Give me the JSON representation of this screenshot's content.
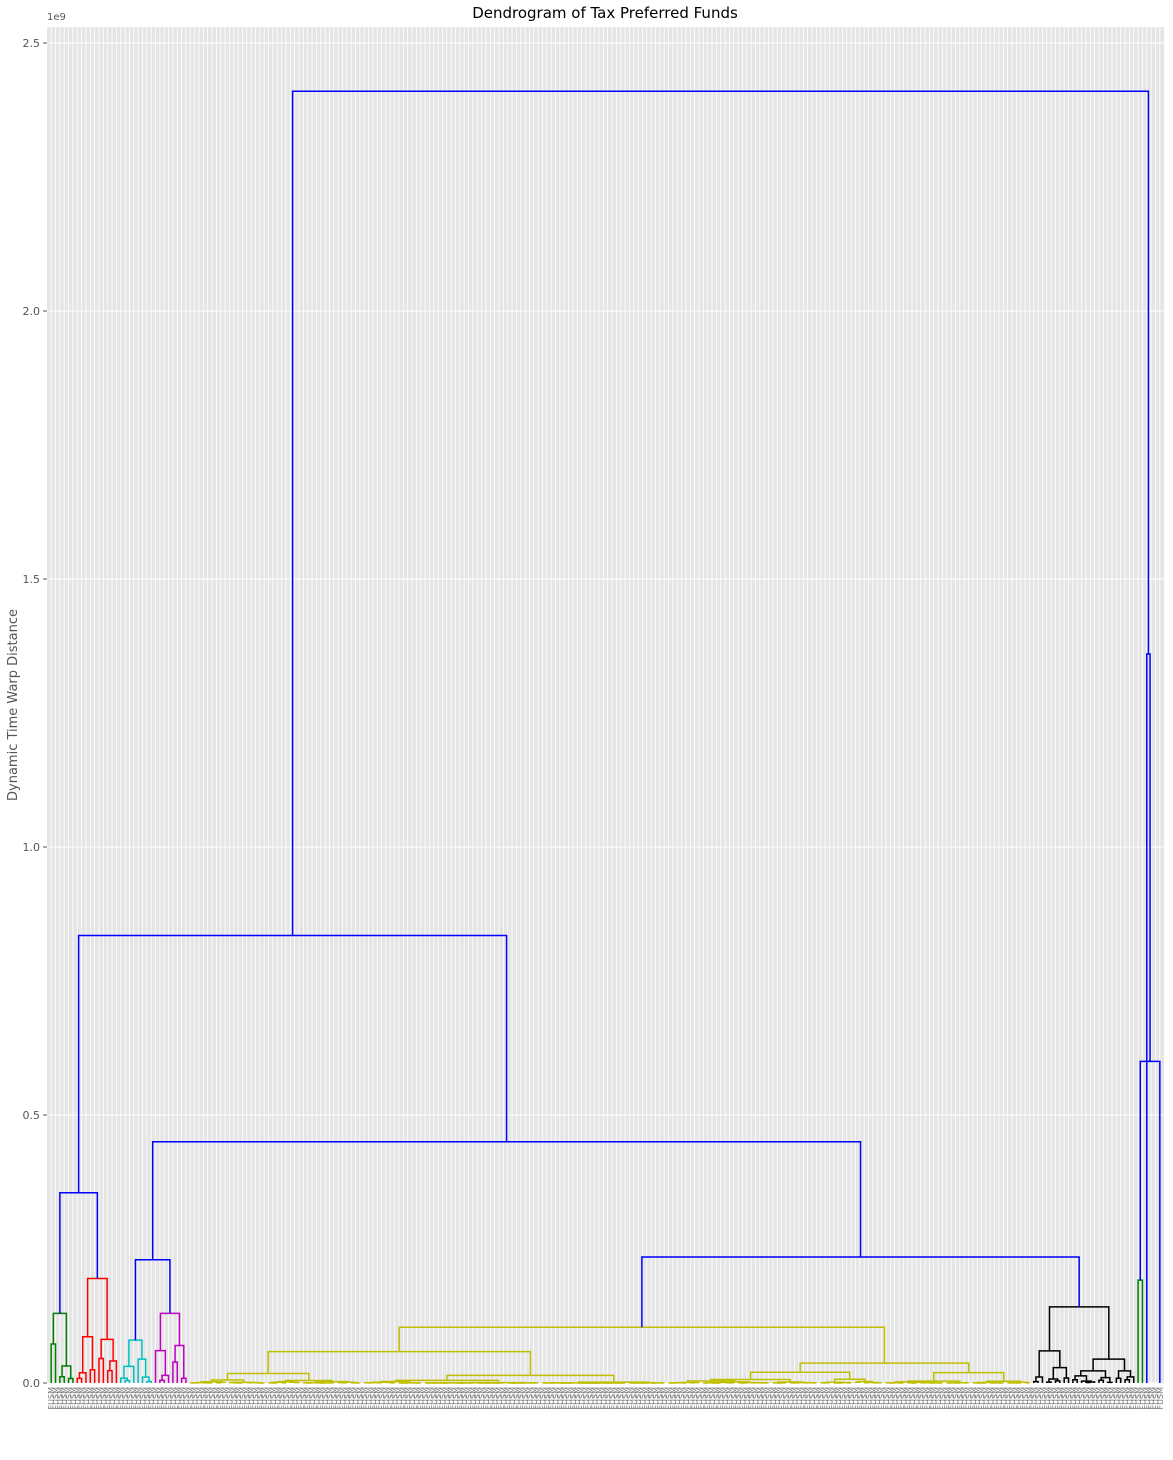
{
  "chart_data": {
    "type": "dendrogram",
    "title": "Dendrogram of Tax Preferred Funds",
    "xlabel": "",
    "ylabel": "Dynamic Time Warp Distance",
    "y_offset_text": "1e9",
    "ylim": [
      0,
      2.53
    ],
    "y_ticks": [
      0.0,
      0.5,
      1.0,
      1.5,
      2.0,
      2.5
    ],
    "y_tick_labels": [
      "0.0",
      "0.5",
      "1.0",
      "1.5",
      "2.0",
      "2.5"
    ],
    "grid": true,
    "leaf_count": 256,
    "leaf_label_prefix": "FUSM",
    "colors": {
      "link_above_threshold": "#0000ff",
      "cluster_green": "#008000",
      "cluster_red": "#ff0000",
      "cluster_cyan": "#00bfbf",
      "cluster_magenta": "#bf00bf",
      "cluster_yellow": "#bfbf00",
      "cluster_black": "#000000",
      "background": "#e5e5e5",
      "grid": "#ffffff"
    },
    "top_merges": [
      {
        "height": 2.41,
        "color": "blue",
        "children": [
          "left-super",
          "right-outliers"
        ]
      },
      {
        "height": 1.36,
        "color": "blue",
        "children": [
          "right-outliers-a",
          "right-outliers-b"
        ]
      },
      {
        "height": 0.6,
        "color": "blue",
        "children": [
          "outlier-green",
          "outlier-single"
        ]
      },
      {
        "height": 0.835,
        "color": "blue",
        "children": [
          "small-clusters",
          "big-group"
        ]
      },
      {
        "height": 0.45,
        "color": "blue",
        "children": [
          "cyan-magenta",
          "yellow-black"
        ]
      },
      {
        "height": 0.355,
        "color": "blue",
        "children": [
          "green",
          "red"
        ]
      },
      {
        "height": 0.235,
        "color": "blue",
        "children": [
          "yellow",
          "black"
        ]
      },
      {
        "height": 0.23,
        "color": "blue",
        "children": [
          "cyan",
          "magenta"
        ]
      }
    ],
    "clusters": [
      {
        "name": "green",
        "color": "green",
        "leaves": 6,
        "max_height": 0.13
      },
      {
        "name": "red",
        "color": "red",
        "leaves": 10,
        "max_height": 0.195
      },
      {
        "name": "cyan",
        "color": "cyan",
        "leaves": 8,
        "max_height": 0.08
      },
      {
        "name": "magenta",
        "color": "magenta",
        "leaves": 8,
        "max_height": 0.13
      },
      {
        "name": "yellow",
        "color": "yellow",
        "leaves": 194,
        "max_height": 0.104
      },
      {
        "name": "black",
        "color": "black",
        "leaves": 24,
        "max_height": 0.142
      },
      {
        "name": "outlier-green",
        "color": "green",
        "leaves": 2,
        "max_height": 0.192
      }
    ]
  }
}
